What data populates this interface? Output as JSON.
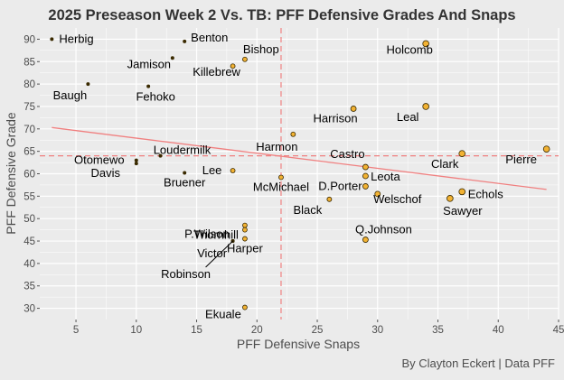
{
  "chart_data": {
    "type": "scatter",
    "title": "2025 Preseason Week 2 Vs. TB: PFF Defensive Grades And Snaps",
    "xlabel": "PFF Defensive Snaps",
    "ylabel": "PFF Defensive Grade",
    "caption": "By Clayton Eckert | Data PFF",
    "xlim": [
      2,
      45
    ],
    "ylim": [
      27.5,
      92.5
    ],
    "x_ticks": [
      5,
      10,
      15,
      20,
      25,
      30,
      35,
      40,
      45
    ],
    "y_ticks": [
      30,
      35,
      40,
      45,
      50,
      55,
      60,
      65,
      70,
      75,
      80,
      85,
      90
    ],
    "grid": true,
    "reference_lines": {
      "vertical_x": 22,
      "horizontal_y": 64,
      "color": "#f08080"
    },
    "trend_line": {
      "x": [
        3,
        44
      ],
      "y": [
        70.3,
        56.5
      ],
      "color": "#f08080"
    },
    "colors": {
      "point_fill": "#f2b233",
      "point_stroke": "#3a2a00",
      "panel": "#ebebeb",
      "grid": "#ffffff"
    },
    "points": [
      {
        "name": "Herbig",
        "x": 3,
        "y": 90
      },
      {
        "name": "Benton",
        "x": 14,
        "y": 89.5
      },
      {
        "name": "Bishop",
        "x": 19,
        "y": 85.5
      },
      {
        "name": "Holcomb",
        "x": 34,
        "y": 89
      },
      {
        "name": "Jamison",
        "x": 13,
        "y": 85.8
      },
      {
        "name": "Killebrew",
        "x": 18,
        "y": 84
      },
      {
        "name": "Baugh",
        "x": 6,
        "y": 80
      },
      {
        "name": "Fehoko",
        "x": 11,
        "y": 79.5
      },
      {
        "name": "Harrison",
        "x": 28,
        "y": 74.5
      },
      {
        "name": "Leal",
        "x": 34,
        "y": 75
      },
      {
        "name": "Harmon",
        "x": 23,
        "y": 68.8
      },
      {
        "name": "Loudermilk",
        "x": 12,
        "y": 64
      },
      {
        "name": "Otomewo",
        "x": 10,
        "y": 63
      },
      {
        "name": "Davis",
        "x": 10,
        "y": 62.3
      },
      {
        "name": "Lee",
        "x": 18,
        "y": 60.7
      },
      {
        "name": "Bruener",
        "x": 14,
        "y": 60.2
      },
      {
        "name": "McMichael",
        "x": 22,
        "y": 59.2
      },
      {
        "name": "Castro",
        "x": 29,
        "y": 61.5
      },
      {
        "name": "Leota",
        "x": 29,
        "y": 59.5
      },
      {
        "name": "D.Porter",
        "x": 29,
        "y": 57.2
      },
      {
        "name": "Clark",
        "x": 37,
        "y": 64.5
      },
      {
        "name": "Pierre",
        "x": 44,
        "y": 65.5
      },
      {
        "name": "Echols",
        "x": 37,
        "y": 56
      },
      {
        "name": "Welschof",
        "x": 30,
        "y": 55.5
      },
      {
        "name": "Sawyer",
        "x": 36,
        "y": 54.5
      },
      {
        "name": "Black",
        "x": 26,
        "y": 54.3
      },
      {
        "name": "Thornhill",
        "x": 19,
        "y": 48.5
      },
      {
        "name": "P.Wilson",
        "x": 19,
        "y": 47.5
      },
      {
        "name": "Harper",
        "x": 19,
        "y": 45.5
      },
      {
        "name": "Q.Johnson",
        "x": 29,
        "y": 45.3
      },
      {
        "name": "Victor",
        "x": 18,
        "y": 45
      },
      {
        "name": "Robinson",
        "x": 18,
        "y": 45
      },
      {
        "name": "Ekuale",
        "x": 19,
        "y": 30.2
      }
    ]
  }
}
